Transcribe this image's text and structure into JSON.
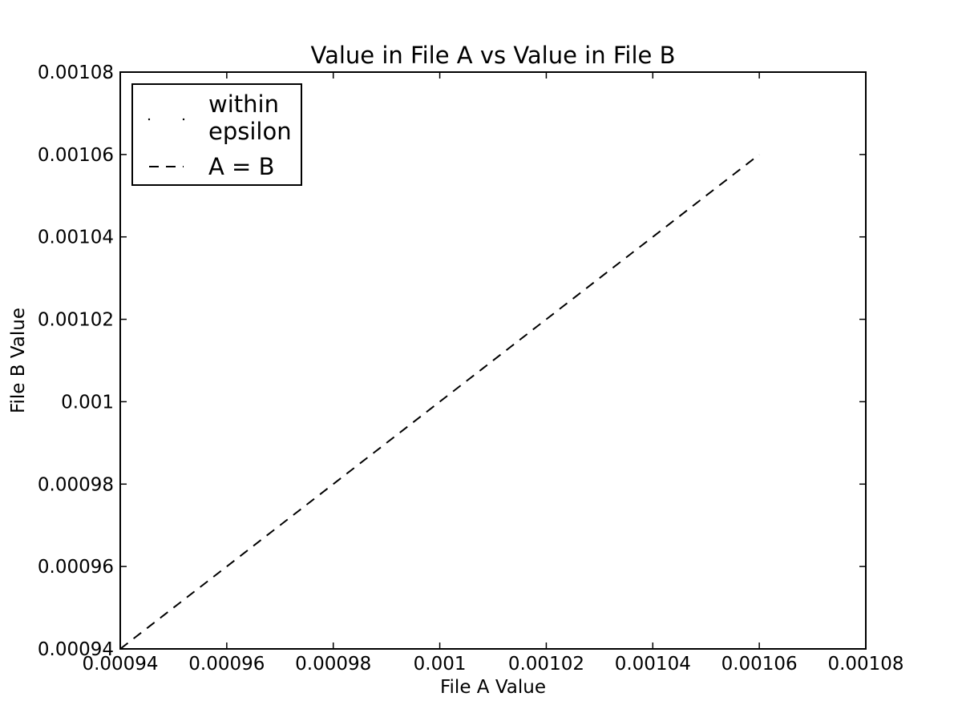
{
  "chart_data": {
    "type": "line",
    "title": "Value in File A vs Value in File B",
    "xlabel": "File A Value",
    "ylabel": "File B Value",
    "xlim": [
      0.00094,
      0.00108
    ],
    "ylim": [
      0.00094,
      0.00108
    ],
    "x_ticks": [
      0.00094,
      0.00096,
      0.00098,
      0.001,
      0.00102,
      0.00104,
      0.00106,
      0.00108
    ],
    "x_tick_labels": [
      "0.00094",
      "0.00096",
      "0.00098",
      "0.001",
      "0.00102",
      "0.00104",
      "0.00106",
      "0.00108"
    ],
    "y_ticks": [
      0.00094,
      0.00096,
      0.00098,
      0.001,
      0.00102,
      0.00104,
      0.00106,
      0.00108
    ],
    "y_tick_labels": [
      "0.00094",
      "0.00096",
      "0.00098",
      "0.001",
      "0.00102",
      "0.00104",
      "0.00106",
      "0.00108"
    ],
    "grid": false,
    "legend_position": "top-left",
    "series": [
      {
        "name": "within epsilon",
        "style": "points",
        "color": "#000000",
        "legend_lines": [
          "within",
          "epsilon"
        ],
        "x": [],
        "y": []
      },
      {
        "name": "A = B",
        "style": "dashed",
        "color": "#000000",
        "x": [
          0.00094,
          0.00106
        ],
        "y": [
          0.00094,
          0.00106
        ]
      }
    ]
  }
}
